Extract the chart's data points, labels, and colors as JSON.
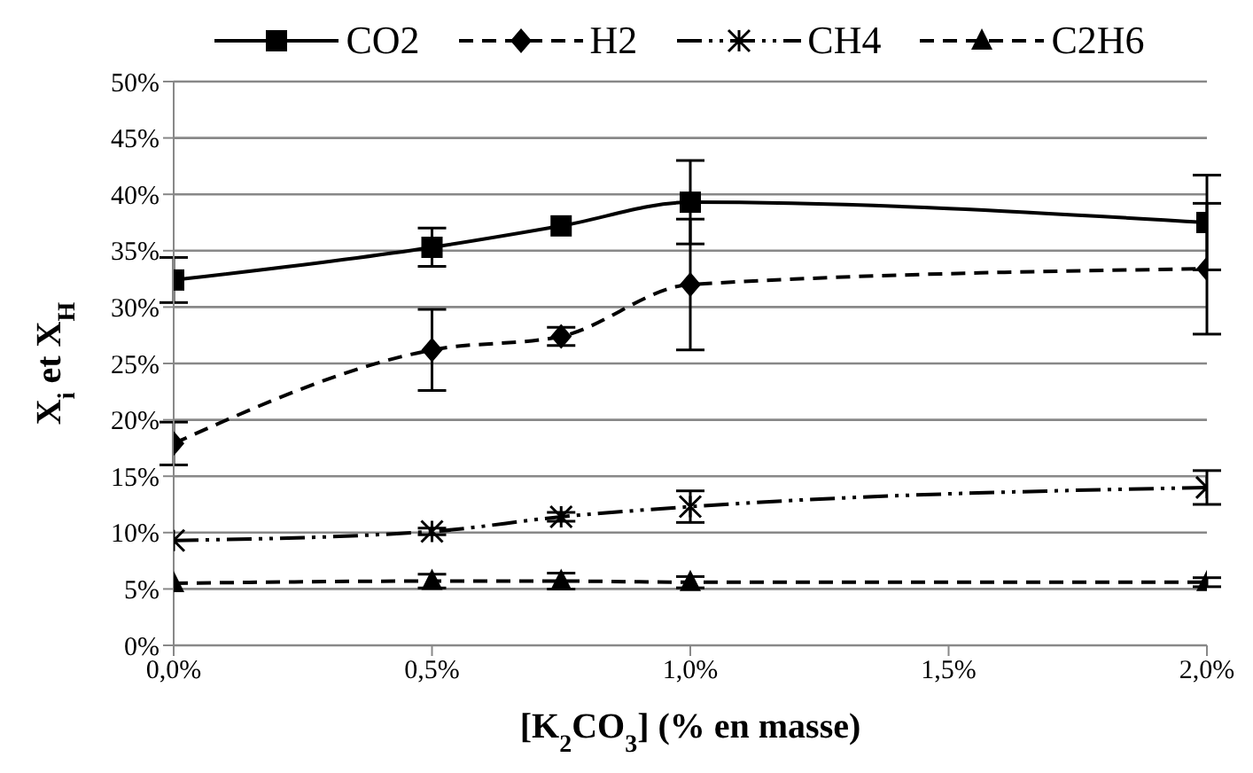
{
  "chart_data": {
    "type": "line",
    "xlabel": "[K$_{2}$CO$_{3}$]  (% en masse)",
    "ylabel": "X$_{i}$ et X$_{H}$",
    "x": [
      0,
      0.5,
      0.75,
      1,
      2
    ],
    "xlim": [
      0,
      2
    ],
    "xticks": [
      {
        "value": 0,
        "label": "0,0%"
      },
      {
        "value": 0.5,
        "label": "0,5%"
      },
      {
        "value": 1,
        "label": "1,0%"
      },
      {
        "value": 1.5,
        "label": "1,5%"
      },
      {
        "value": 2,
        "label": "2,0%"
      }
    ],
    "ylim": [
      0,
      50
    ],
    "yticks": [
      {
        "value": 0,
        "label": "0%"
      },
      {
        "value": 5,
        "label": "5%"
      },
      {
        "value": 10,
        "label": "10%"
      },
      {
        "value": 15,
        "label": "15%"
      },
      {
        "value": 20,
        "label": "20%"
      },
      {
        "value": 25,
        "label": "25%"
      },
      {
        "value": 30,
        "label": "30%"
      },
      {
        "value": 35,
        "label": "35%"
      },
      {
        "value": 40,
        "label": "40%"
      },
      {
        "value": 45,
        "label": "45%"
      },
      {
        "value": 50,
        "label": "50%"
      }
    ],
    "grid": "y",
    "legend": "top",
    "series": [
      {
        "name": "CO2",
        "color": "#000000",
        "marker": "square",
        "line_style": "solid",
        "values": [
          32.4,
          35.3,
          37.2,
          39.3,
          37.5
        ],
        "errors": [
          2,
          1.7,
          null,
          3.7,
          4.2
        ]
      },
      {
        "name": "H2",
        "color": "#000000",
        "marker": "diamond",
        "line_style": "dashed",
        "values": [
          17.9,
          26.2,
          27.4,
          32,
          33.4
        ],
        "errors": [
          1.9,
          3.6,
          0.8,
          5.8,
          5.8
        ]
      },
      {
        "name": "CH4",
        "color": "#000000",
        "marker": "cross",
        "line_style": "dotted",
        "values": [
          9.3,
          10.1,
          11.4,
          12.3,
          14
        ],
        "errors": [
          null,
          0.3,
          0.4,
          1.4,
          1.5
        ]
      },
      {
        "name": "C2H6",
        "color": "#000000",
        "marker": "triangle",
        "line_style": "dashed",
        "values": [
          5.5,
          5.7,
          5.7,
          5.6,
          5.6
        ],
        "errors": [
          null,
          0.6,
          0.7,
          0.5,
          0.4
        ]
      }
    ]
  }
}
